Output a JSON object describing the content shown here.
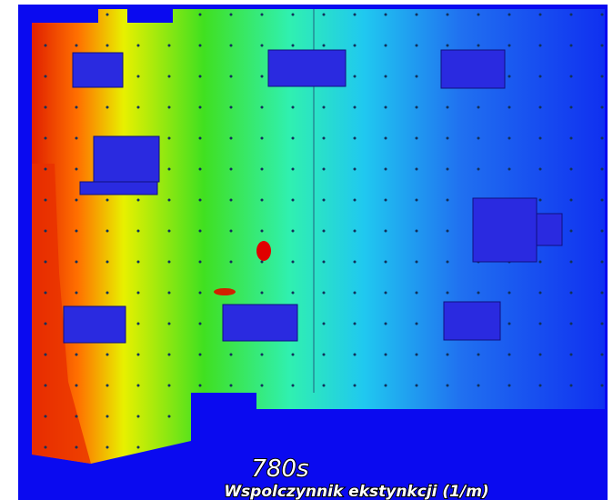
{
  "time_label": "780s",
  "caption": "Wspolczynnik ekstynkcji (1/m)"
}
